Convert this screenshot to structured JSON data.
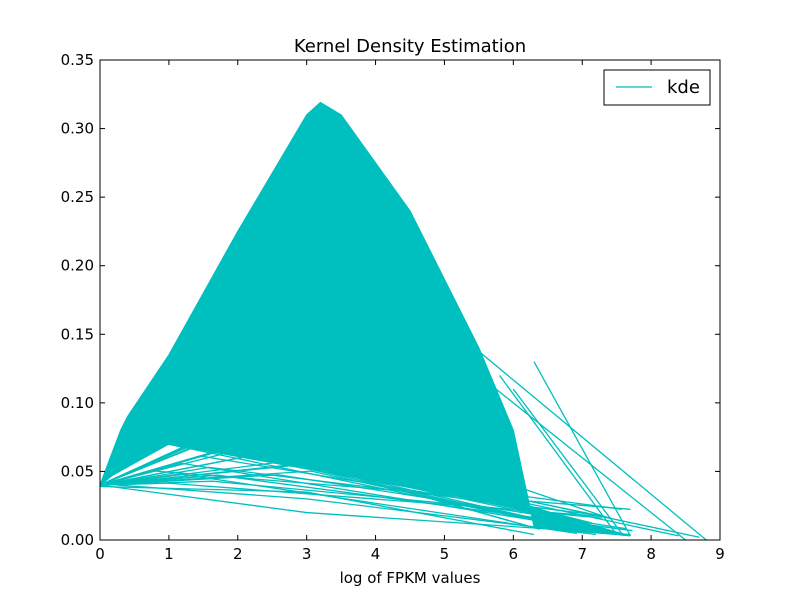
{
  "chart_data": {
    "type": "line",
    "title": "Kernel Density Estimation",
    "xlabel": "log of FPKM values",
    "ylabel": "",
    "xlim": [
      0,
      9
    ],
    "ylim": [
      0,
      0.35
    ],
    "xticks": [
      "0",
      "1",
      "2",
      "3",
      "4",
      "5",
      "6",
      "7",
      "8",
      "9"
    ],
    "yticks": [
      "0.00",
      "0.05",
      "0.10",
      "0.15",
      "0.20",
      "0.25",
      "0.30",
      "0.35"
    ],
    "grid": false,
    "legend": {
      "position": "top-right",
      "entries": [
        "kde"
      ]
    },
    "series": [
      {
        "name": "kde",
        "color": "#00bfbf",
        "x": [
          0,
          0.15,
          0.3,
          0.4,
          1.0,
          2.0,
          3.0,
          3.2,
          3.5,
          4.5,
          5.5,
          6.0,
          6.3,
          7.0,
          7.5,
          7.7
        ],
        "y": [
          0.04,
          0.06,
          0.08,
          0.09,
          0.135,
          0.225,
          0.31,
          0.319,
          0.31,
          0.24,
          0.14,
          0.08,
          0.01,
          0.006,
          0.004,
          0.003
        ]
      }
    ]
  }
}
